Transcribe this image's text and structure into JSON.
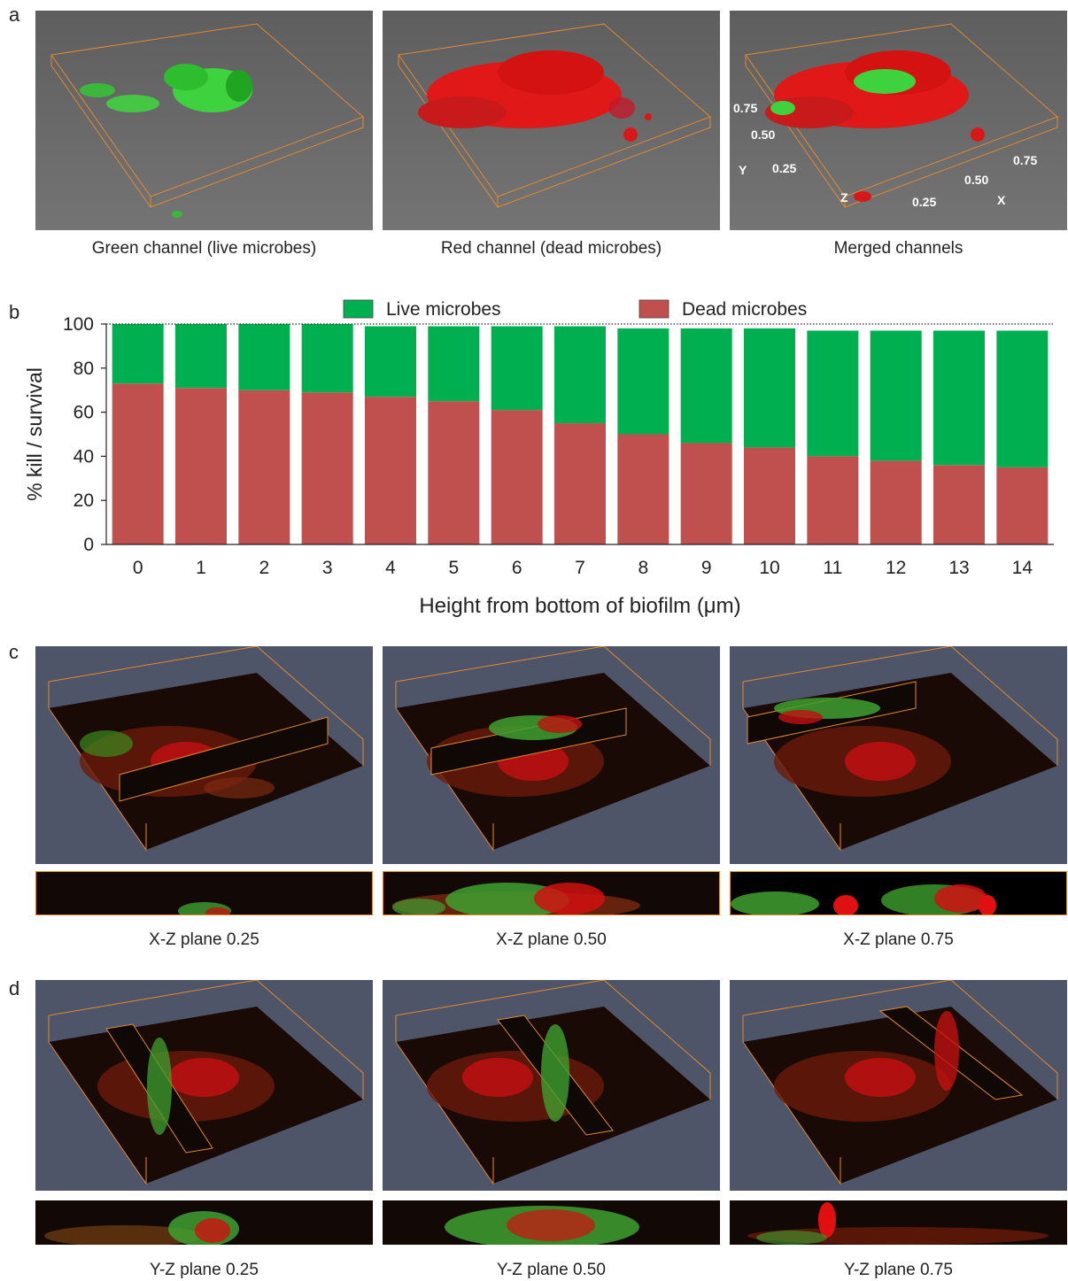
{
  "panels": {
    "a": {
      "letter": "a",
      "captions": [
        "Green channel (live microbes)",
        "Red channel (dead microbes)",
        "Merged channels"
      ],
      "axis_labels": {
        "y_ticks": [
          "0.75",
          "0.50",
          "0.25"
        ],
        "x_ticks": [
          "0.75",
          "0.50",
          "0.25"
        ],
        "y": "Y",
        "x": "X",
        "z": "Z"
      }
    },
    "b": {
      "letter": "b"
    },
    "c": {
      "letter": "c",
      "captions": [
        "X-Z plane 0.25",
        "X-Z plane 0.50",
        "X-Z plane 0.75"
      ]
    },
    "d": {
      "letter": "d",
      "captions": [
        "Y-Z plane 0.25",
        "Y-Z plane 0.50",
        "Y-Z plane 0.75"
      ]
    }
  },
  "colors": {
    "live": "#00b050",
    "dead": "#c0504d",
    "render_gray": "#6e6e6e",
    "render_slate": "#4f5568",
    "box_orange": "#e08a30"
  },
  "chart_data": {
    "type": "bar",
    "stacked": true,
    "categories": [
      "0",
      "1",
      "2",
      "3",
      "4",
      "5",
      "6",
      "7",
      "8",
      "9",
      "10",
      "11",
      "12",
      "13",
      "14"
    ],
    "series": [
      {
        "name": "Dead microbes",
        "values": [
          73,
          71,
          70,
          69,
          67,
          65,
          61,
          55,
          50,
          46,
          44,
          40,
          38,
          36,
          35
        ]
      },
      {
        "name": "Live microbes",
        "values": [
          27,
          29,
          30,
          31,
          32,
          34,
          38,
          44,
          48,
          52,
          54,
          57,
          59,
          61,
          62
        ]
      }
    ],
    "xlabel": "Height from bottom of biofilm (μm)",
    "ylabel": "% kill / survival",
    "ylim": [
      0,
      100
    ],
    "yticks": [
      "0",
      "20",
      "40",
      "60",
      "80",
      "100"
    ],
    "reference_line": 100,
    "legend_placement": "top-center",
    "grid": false
  }
}
